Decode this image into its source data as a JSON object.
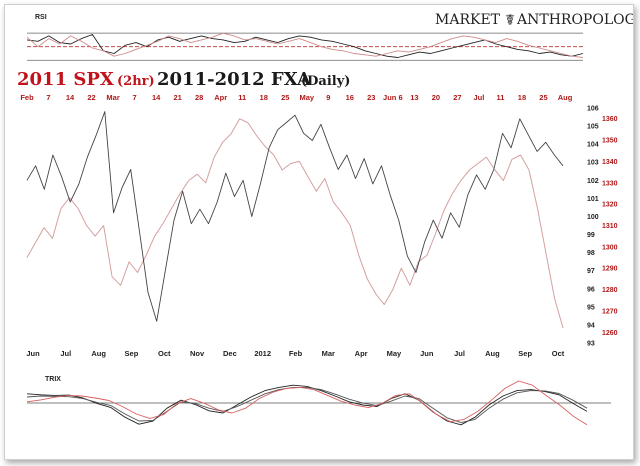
{
  "logo": {
    "word1": "MARKET",
    "word2": "ANTHROPOLOGY"
  },
  "title": {
    "part1": "2011 SPX",
    "part1_sub": "(2hr)",
    "part2": "2011-2012 FXA",
    "part2_sub": "(Daily)",
    "color1": "#c0141c",
    "color2": "#1a1a1a"
  },
  "chart_data": [
    {
      "type": "line",
      "panel": "RSI",
      "title": "RSI",
      "levels": [
        70,
        50,
        30
      ],
      "ylim": [
        20,
        85
      ],
      "series": [
        {
          "color": "#222222",
          "values": [
            60,
            58,
            66,
            56,
            54,
            62,
            68,
            44,
            40,
            52,
            56,
            50,
            60,
            64,
            58,
            62,
            66,
            62,
            60,
            56,
            58,
            64,
            60,
            56,
            62,
            66,
            64,
            60,
            58,
            54,
            50,
            44,
            40,
            36,
            34,
            38,
            42,
            40,
            44,
            48,
            52,
            56,
            60,
            54,
            50,
            46,
            44,
            40,
            42,
            38,
            36,
            40
          ]
        },
        {
          "color": "#d08a8a",
          "values": [
            64,
            50,
            62,
            54,
            66,
            58,
            48,
            44,
            36,
            40,
            46,
            52,
            58,
            66,
            62,
            56,
            60,
            64,
            70,
            66,
            60,
            62,
            58,
            54,
            58,
            62,
            56,
            50,
            46,
            44,
            40,
            38,
            36,
            40,
            44,
            42,
            46,
            50,
            56,
            62,
            66,
            64,
            60,
            56,
            62,
            58,
            52,
            48,
            44,
            40,
            36,
            34
          ]
        }
      ]
    },
    {
      "type": "line",
      "panel": "main",
      "top_axis_labels": [
        "Feb",
        "7",
        "14",
        "22",
        "Mar",
        "7",
        "14",
        "21",
        "28",
        "Apr",
        "11",
        "18",
        "25",
        "May",
        "9",
        "16",
        "23",
        "Jun 6",
        "13",
        "20",
        "27",
        "Jul",
        "11",
        "18",
        "25",
        "Aug"
      ],
      "bottom_axis_labels": [
        "Jun",
        "Jul",
        "Aug",
        "Sep",
        "Oct",
        "Nov",
        "Dec",
        "2012",
        "Feb",
        "Mar",
        "Apr",
        "May",
        "Jun",
        "Jul",
        "Aug",
        "Sep",
        "Oct"
      ],
      "y_left_label_axis": {
        "ticks": [
          93,
          94,
          95,
          96,
          97,
          98,
          99,
          100,
          101,
          102,
          103,
          104,
          105,
          106
        ],
        "ylim": [
          93,
          106
        ]
      },
      "y_right_label_axis": {
        "ticks": [
          1260,
          1270,
          1280,
          1290,
          1300,
          1310,
          1320,
          1330,
          1340,
          1350,
          1360
        ],
        "ylim": [
          1255,
          1365
        ]
      },
      "series": [
        {
          "color": "#444444",
          "axis": "left",
          "values": [
            102,
            102.8,
            101.5,
            103.4,
            102.2,
            100.8,
            101.8,
            103.3,
            104.5,
            105.8,
            100.2,
            101.6,
            102.6,
            99.2,
            95.8,
            94.2,
            97,
            99.8,
            101.4,
            99.6,
            100.4,
            99.6,
            100.8,
            102.4,
            101.1,
            102,
            100,
            101.8,
            103.8,
            104.8,
            105.2,
            105.6,
            104.6,
            104.2,
            105.1,
            103.8,
            102.6,
            103.4,
            102.1,
            103.2,
            101.8,
            102.8,
            101.2,
            99.8,
            97.8,
            96.9,
            98.6,
            99.8,
            98.8,
            100.2,
            99.4,
            101.2,
            102.3,
            101.5,
            102.6,
            104.6,
            103.8,
            105.4,
            104.5,
            103.6,
            104.1,
            103.4,
            102.8
          ]
        },
        {
          "color": "#d4a0a0",
          "axis": "right",
          "values": [
            1295,
            1302,
            1309,
            1304,
            1318,
            1323,
            1318,
            1310,
            1305,
            1310,
            1286,
            1282,
            1293,
            1288,
            1296,
            1305,
            1311,
            1318,
            1325,
            1331,
            1334,
            1330,
            1342,
            1349,
            1353,
            1360,
            1358,
            1352,
            1347,
            1343,
            1336,
            1339,
            1340,
            1333,
            1326,
            1332,
            1321,
            1316,
            1310,
            1296,
            1285,
            1278,
            1273,
            1280,
            1290,
            1282,
            1293,
            1296,
            1306,
            1317,
            1325,
            1331,
            1336,
            1339,
            1342,
            1336,
            1331,
            1341,
            1343,
            1336,
            1318,
            1297,
            1276,
            1262
          ]
        }
      ]
    },
    {
      "type": "line",
      "panel": "TRIX",
      "title": "TRIX",
      "ylim": [
        -1,
        1
      ],
      "series": [
        {
          "color": "#222222",
          "values": [
            0.35,
            0.32,
            0.3,
            0.31,
            0.22,
            0.05,
            -0.08,
            -0.38,
            -0.6,
            -0.5,
            -0.1,
            0.15,
            0.02,
            -0.18,
            -0.25,
            0.0,
            0.25,
            0.45,
            0.55,
            0.62,
            0.58,
            0.45,
            0.28,
            0.1,
            0.0,
            -0.05,
            0.2,
            0.35,
            0.15,
            -0.22,
            -0.5,
            -0.62,
            -0.38,
            0.0,
            0.28,
            0.45,
            0.48,
            0.42,
            0.32,
            0.05,
            -0.2
          ]
        },
        {
          "color": "#555555",
          "values": [
            0.25,
            0.28,
            0.27,
            0.26,
            0.2,
            0.08,
            -0.02,
            -0.28,
            -0.5,
            -0.48,
            -0.2,
            0.1,
            0.05,
            -0.1,
            -0.2,
            -0.05,
            0.15,
            0.35,
            0.48,
            0.55,
            0.55,
            0.48,
            0.34,
            0.18,
            0.06,
            -0.02,
            0.12,
            0.28,
            0.2,
            -0.1,
            -0.4,
            -0.55,
            -0.45,
            -0.1,
            0.18,
            0.38,
            0.45,
            0.44,
            0.36,
            0.15,
            -0.1
          ]
        },
        {
          "color": "#d86060",
          "values": [
            0.1,
            0.16,
            0.24,
            0.3,
            0.28,
            0.22,
            0.14,
            -0.05,
            -0.28,
            -0.42,
            -0.3,
            0.05,
            0.2,
            0.05,
            -0.15,
            -0.25,
            -0.1,
            0.2,
            0.4,
            0.52,
            0.55,
            0.48,
            0.3,
            0.12,
            0.0,
            -0.08,
            0.05,
            0.3,
            0.35,
            0.05,
            -0.3,
            -0.52,
            -0.45,
            -0.2,
            0.15,
            0.52,
            0.75,
            0.62,
            0.3,
            0.0,
            -0.35,
            -0.62
          ]
        }
      ]
    }
  ]
}
